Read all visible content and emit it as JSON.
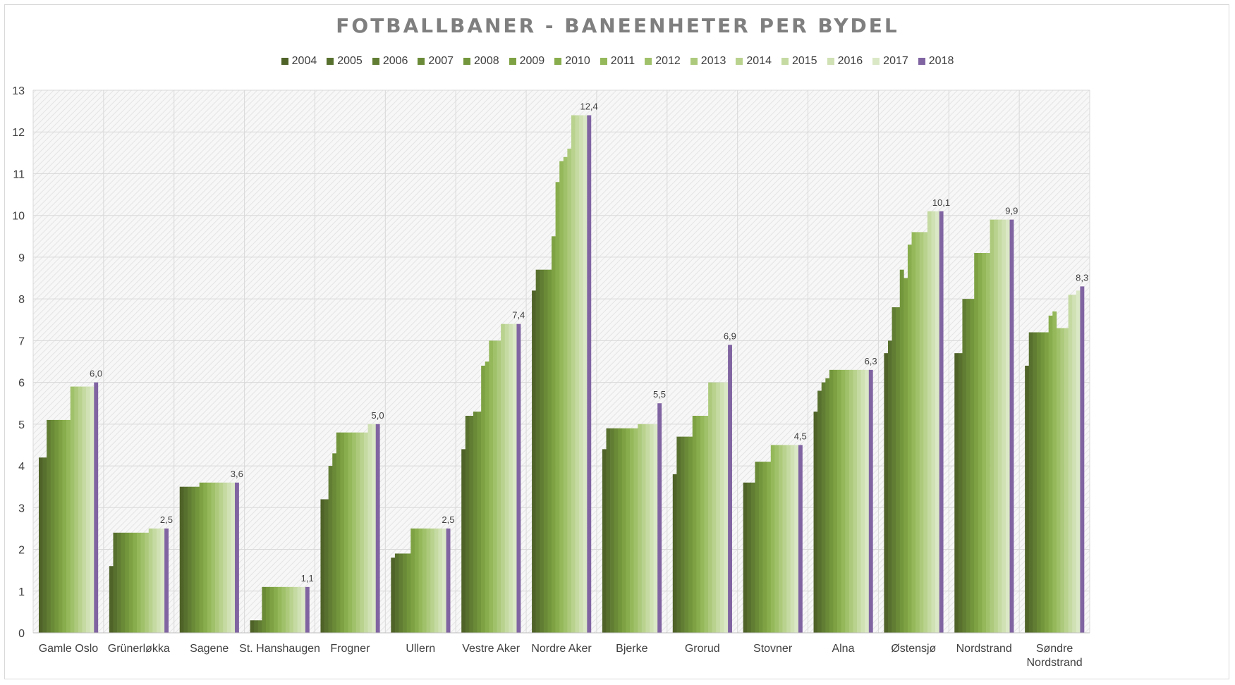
{
  "chart_data": {
    "type": "bar",
    "title": "FOTBALLBANER - BANEENHETER PER BYDEL",
    "xlabel": "",
    "ylabel": "",
    "ylim": [
      0,
      13
    ],
    "yticks": [
      "0",
      "1",
      "2",
      "3",
      "4",
      "5",
      "6",
      "7",
      "8",
      "9",
      "10",
      "11",
      "12",
      "13"
    ],
    "grid": true,
    "legend_position": "top",
    "categories": [
      "Gamle Oslo",
      "Grünerløkka",
      "Sagene",
      "St. Hanshaugen",
      "Frogner",
      "Ullern",
      "Vestre Aker",
      "Nordre Aker",
      "Bjerke",
      "Grorud",
      "Stovner",
      "Alna",
      "Østensjø",
      "Nordstrand",
      "Søndre Nordstrand"
    ],
    "series": [
      {
        "name": "2004",
        "color": "#4f6228",
        "values": [
          4.2,
          1.6,
          3.5,
          0.3,
          3.2,
          1.8,
          4.4,
          8.2,
          4.4,
          3.8,
          3.6,
          5.3,
          6.7,
          6.7,
          6.4
        ]
      },
      {
        "name": "2005",
        "color": "#58702e",
        "values": [
          4.2,
          2.4,
          3.5,
          0.3,
          3.2,
          1.9,
          5.2,
          8.7,
          4.9,
          4.7,
          3.6,
          5.8,
          7.0,
          6.7,
          7.2
        ]
      },
      {
        "name": "2006",
        "color": "#617d33",
        "values": [
          5.1,
          2.4,
          3.5,
          0.3,
          4.0,
          1.9,
          5.2,
          8.7,
          4.9,
          4.7,
          3.6,
          6.0,
          7.8,
          8.0,
          7.2
        ]
      },
      {
        "name": "2007",
        "color": "#6a8a37",
        "values": [
          5.1,
          2.4,
          3.5,
          1.1,
          4.3,
          1.9,
          5.3,
          8.7,
          4.9,
          4.7,
          4.1,
          6.1,
          7.8,
          8.0,
          7.2
        ]
      },
      {
        "name": "2008",
        "color": "#73963c",
        "values": [
          5.1,
          2.4,
          3.5,
          1.1,
          4.8,
          1.9,
          5.3,
          8.7,
          4.9,
          4.7,
          4.1,
          6.3,
          8.7,
          8.0,
          7.2
        ]
      },
      {
        "name": "2009",
        "color": "#7ea243",
        "values": [
          5.1,
          2.4,
          3.6,
          1.1,
          4.8,
          2.5,
          6.4,
          9.5,
          4.9,
          5.2,
          4.1,
          6.3,
          8.5,
          9.1,
          7.2
        ]
      },
      {
        "name": "2010",
        "color": "#88ad4c",
        "values": [
          5.1,
          2.4,
          3.6,
          1.1,
          4.8,
          2.5,
          6.5,
          10.8,
          4.9,
          5.2,
          4.1,
          6.3,
          9.3,
          9.1,
          7.6
        ]
      },
      {
        "name": "2011",
        "color": "#94b85a",
        "values": [
          5.1,
          2.4,
          3.6,
          1.1,
          4.8,
          2.5,
          7.0,
          11.3,
          4.9,
          5.2,
          4.5,
          6.3,
          9.6,
          9.1,
          7.7
        ]
      },
      {
        "name": "2012",
        "color": "#a0c16a",
        "values": [
          5.9,
          2.4,
          3.6,
          1.1,
          4.8,
          2.5,
          7.0,
          11.4,
          4.9,
          5.2,
          4.5,
          6.3,
          9.6,
          9.1,
          7.3
        ]
      },
      {
        "name": "2013",
        "color": "#adca7c",
        "values": [
          5.9,
          2.4,
          3.6,
          1.1,
          4.8,
          2.5,
          7.0,
          11.6,
          5.0,
          6.0,
          4.5,
          6.3,
          9.6,
          9.9,
          7.3
        ]
      },
      {
        "name": "2014",
        "color": "#b9d28e",
        "values": [
          5.9,
          2.5,
          3.6,
          1.1,
          4.8,
          2.5,
          7.4,
          12.4,
          5.0,
          6.0,
          4.5,
          6.3,
          9.6,
          9.9,
          7.3
        ]
      },
      {
        "name": "2015",
        "color": "#c5daa2",
        "values": [
          5.9,
          2.5,
          3.6,
          1.1,
          4.8,
          2.5,
          7.4,
          12.4,
          5.0,
          6.0,
          4.5,
          6.3,
          10.1,
          9.9,
          8.1
        ]
      },
      {
        "name": "2016",
        "color": "#d0e1b4",
        "values": [
          5.9,
          2.5,
          3.6,
          1.1,
          5.0,
          2.5,
          7.4,
          12.4,
          5.0,
          6.0,
          4.5,
          6.3,
          10.1,
          9.9,
          8.1
        ]
      },
      {
        "name": "2017",
        "color": "#dbe8c6",
        "values": [
          5.9,
          2.5,
          3.6,
          1.1,
          5.0,
          2.5,
          7.4,
          12.4,
          5.0,
          6.0,
          4.5,
          6.3,
          10.1,
          9.9,
          8.2
        ]
      },
      {
        "name": "2018",
        "color": "#8064a2",
        "values": [
          6.0,
          2.5,
          3.6,
          1.1,
          5.0,
          2.5,
          7.4,
          12.4,
          5.5,
          6.9,
          4.5,
          6.3,
          10.1,
          9.9,
          8.3
        ]
      }
    ],
    "data_labels": [
      "6,0",
      "2,5",
      "3,6",
      "1,1",
      "5,0",
      "2,5",
      "7,4",
      "12,4",
      "5,5",
      "6,9",
      "4,5",
      "6,3",
      "10,1",
      "9,9",
      "8,3"
    ],
    "category_label_lines": [
      [
        "Gamle Oslo"
      ],
      [
        "Grünerløkka"
      ],
      [
        "Sagene"
      ],
      [
        "St. Hanshaugen"
      ],
      [
        "Frogner"
      ],
      [
        "Ullern"
      ],
      [
        "Vestre Aker"
      ],
      [
        "Nordre Aker"
      ],
      [
        "Bjerke"
      ],
      [
        "Grorud"
      ],
      [
        "Stovner"
      ],
      [
        "Alna"
      ],
      [
        "Østensjø"
      ],
      [
        "Nordstrand"
      ],
      [
        "Søndre",
        "Nordstrand"
      ]
    ]
  }
}
